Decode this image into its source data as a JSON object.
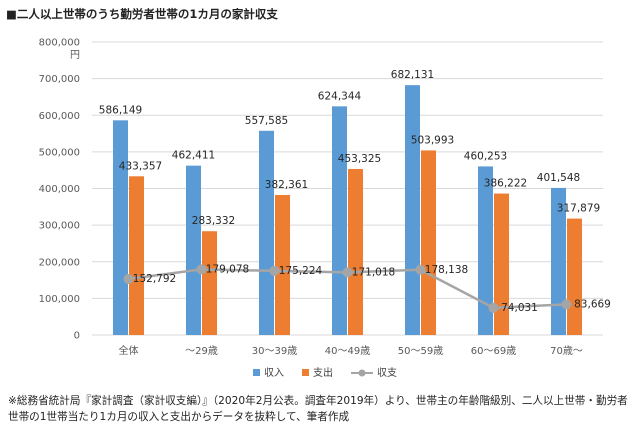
{
  "header": {
    "title": "■二人以上世帯のうち勤労者世帯の1カ月の家計収支"
  },
  "footer": {
    "note": "※総務省統計局『家計調査（家計収支編）』（2020年2月公表。調査年2019年）より、世帯主の年齢階級別、二人以上世帯・勤労者世帯の1世帯当たり1カ月の収入と支出からデータを抜粋して、筆者作成"
  },
  "chart_data": {
    "type": "bar",
    "title": "二人以上世帯のうち勤労者世帯の1カ月の家計収支",
    "categories": [
      "全体",
      "～29歳",
      "30～39歳",
      "40～49歳",
      "50～59歳",
      "60～69歳",
      "70歳～"
    ],
    "series": [
      {
        "name": "収入",
        "type": "bar",
        "color": "#5b9bd5",
        "values": [
          586149,
          462411,
          557585,
          624344,
          682131,
          460253,
          401548
        ],
        "labels": [
          "586,149",
          "462,411",
          "557,585",
          "624,344",
          "682,131",
          "460,253",
          "401,548"
        ]
      },
      {
        "name": "支出",
        "type": "bar",
        "color": "#ed7d31",
        "values": [
          433357,
          283332,
          382361,
          453325,
          503993,
          386222,
          317879
        ],
        "labels": [
          "433,357",
          "283,332",
          "382,361",
          "453,325",
          "503,993",
          "386,222",
          "317,879"
        ]
      },
      {
        "name": "収支",
        "type": "line",
        "color": "#a5a5a5",
        "values": [
          152792,
          179078,
          175224,
          171018,
          178138,
          74031,
          83669
        ],
        "labels": [
          "152,792",
          "179,078",
          "175,224",
          "171,018",
          "178,138",
          "74,031",
          "83,669"
        ]
      }
    ],
    "ylim": [
      0,
      800000
    ],
    "yticks": [
      0,
      100000,
      200000,
      300000,
      400000,
      500000,
      600000,
      700000,
      800000
    ],
    "ytick_labels": [
      "0",
      "100,000",
      "200,000",
      "300,000",
      "400,000",
      "500,000",
      "600,000",
      "700,000",
      "800,000"
    ],
    "yunit": "円",
    "grid": true,
    "legend": "bottom"
  }
}
